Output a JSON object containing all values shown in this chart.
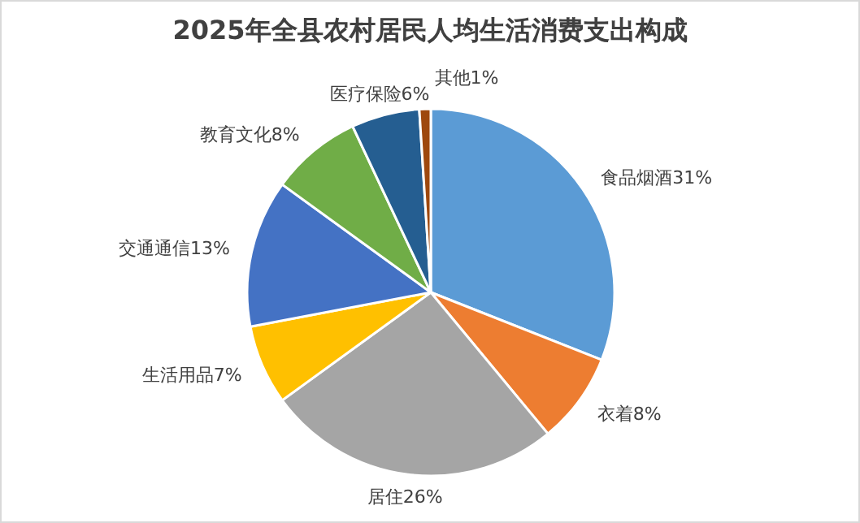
{
  "chart_data": {
    "type": "pie",
    "title": "2025年全县农村居民人均生活消费支出构成",
    "categories": [
      "食品烟酒",
      "衣着",
      "居住",
      "生活用品",
      "交通通信",
      "教育文化",
      "医疗保险",
      "其他"
    ],
    "values": [
      31,
      8,
      26,
      7,
      13,
      8,
      6,
      1
    ],
    "value_labels": [
      "31%",
      "8%",
      "26%",
      "7%",
      "13%",
      "8%",
      "6%",
      "1%"
    ],
    "colors": [
      "#5b9bd5",
      "#ed7d31",
      "#a5a5a5",
      "#ffc000",
      "#4472c4",
      "#70ad47",
      "#255e91",
      "#9e480e"
    ]
  }
}
